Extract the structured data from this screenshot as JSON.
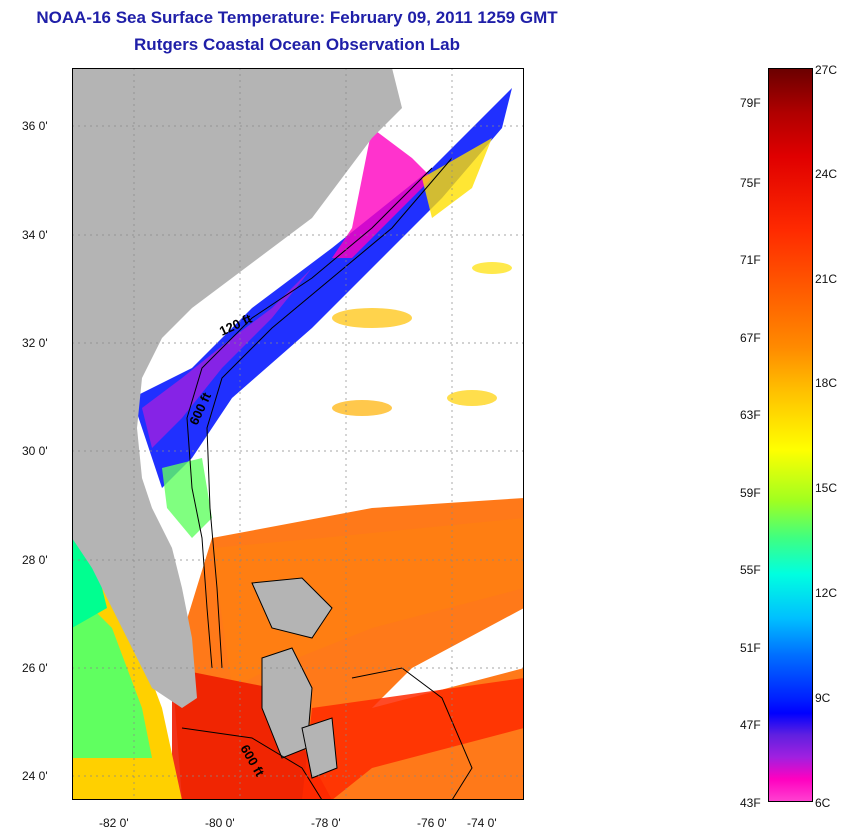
{
  "header": {
    "title": "NOAA-16 Sea Surface Temperature:  February 09, 2011 1259 GMT",
    "subtitle": "Rutgers Coastal Ocean Observation Lab"
  },
  "map": {
    "lat_labels": [
      "36 0'",
      "34 0'",
      "32 0'",
      "30 0'",
      "28 0'",
      "26 0'",
      "24 0'"
    ],
    "lon_labels": [
      "-82 0'",
      "-80 0'",
      "-78 0'",
      "-76 0'",
      "-74 0'"
    ],
    "contour_labels": [
      "120 ft",
      "600 ft",
      "600 ft"
    ],
    "colors": {
      "land": "#b4b4b4",
      "cloud": "#ffffff",
      "warm": "#ff6a00",
      "cold": "#2030ff"
    }
  },
  "colorbar": {
    "fahrenheit": [
      "79F",
      "75F",
      "71F",
      "67F",
      "63F",
      "59F",
      "55F",
      "51F",
      "47F",
      "43F"
    ],
    "celsius": [
      "27C",
      "24C",
      "21C",
      "18C",
      "15C",
      "12C",
      "9C",
      "6C"
    ]
  }
}
